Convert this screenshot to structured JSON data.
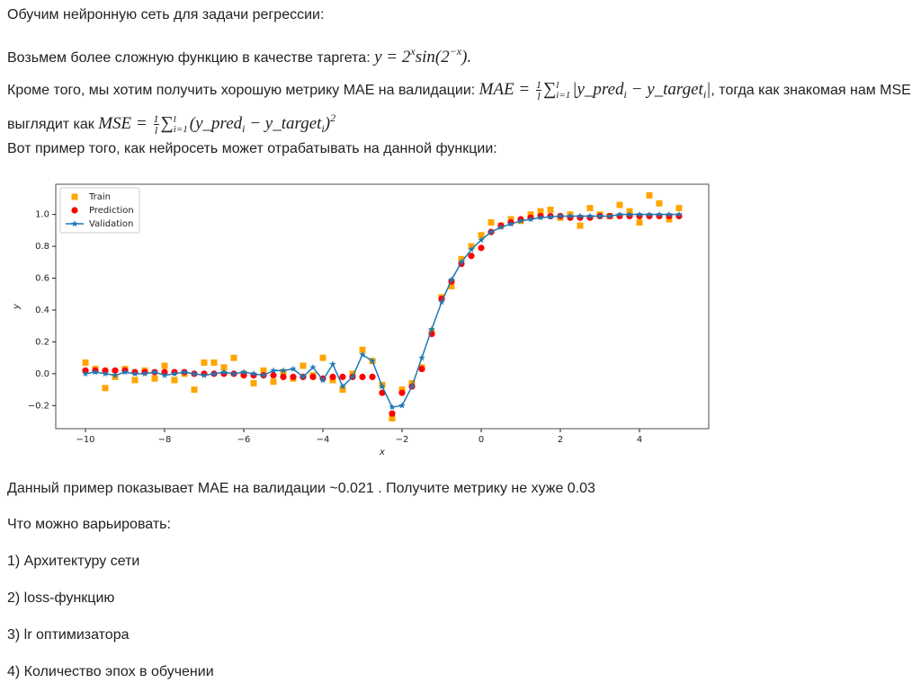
{
  "p0": "Обучим нейронную сеть для задачи регрессии:",
  "p1": {
    "text": "Возьмем более сложную функцию в качестве таргета: ",
    "formula": [
      "y = 2",
      "x",
      "sin(2",
      "−x",
      ")."
    ]
  },
  "p2": {
    "text1": "Кроме того, мы хотим получить хорошую метрику MAE на валидации: ",
    "mae": [
      "MAE = ",
      "1",
      "l",
      "∑",
      "l",
      "i=1",
      "|y_pred",
      "i",
      " − y_target",
      "i",
      "|"
    ],
    "text2": ", тогда как знакомая нам MSE выглядит как ",
    "mse": [
      "MSE = ",
      "1",
      "l",
      "∑",
      "l",
      "i=1",
      "(y_pred",
      "i",
      " − y_target",
      "i",
      ")",
      "2"
    ]
  },
  "p3": "Вот пример того, как нейросеть может отрабатывать на данной функции:",
  "chart_data": {
    "type": "scatter",
    "xlabel": "x",
    "ylabel": "y",
    "xlim": [
      -10.75,
      5.75
    ],
    "ylim": [
      -0.345,
      1.19
    ],
    "xticks": [
      {
        "value": -10,
        "label": "−10"
      },
      {
        "value": -8,
        "label": "−8"
      },
      {
        "value": -6,
        "label": "−6"
      },
      {
        "value": -4,
        "label": "−4"
      },
      {
        "value": -2,
        "label": "−2"
      },
      0,
      2,
      4
    ],
    "yticks": [
      {
        "value": -0.2,
        "label": "−0.2"
      },
      {
        "value": 0,
        "label": "0.0"
      },
      0.2,
      0.4,
      0.6,
      0.8,
      {
        "value": 1,
        "label": "1.0"
      }
    ],
    "legend": "upper-left",
    "x": [
      -10,
      -9.75,
      -9.5,
      -9.25,
      -9,
      -8.75,
      -8.5,
      -8.25,
      -8,
      -7.75,
      -7.5,
      -7.25,
      -7,
      -6.75,
      -6.5,
      -6.25,
      -6,
      -5.75,
      -5.5,
      -5.25,
      -5,
      -4.75,
      -4.5,
      -4.25,
      -4,
      -3.75,
      -3.5,
      -3.25,
      -3,
      -2.75,
      -2.5,
      -2.25,
      -2,
      -1.75,
      -1.5,
      -1.25,
      -1,
      -0.75,
      -0.5,
      -0.25,
      0,
      0.25,
      0.5,
      0.75,
      1,
      1.25,
      1.5,
      1.75,
      2,
      2.25,
      2.5,
      2.75,
      3,
      3.25,
      3.5,
      3.75,
      4,
      4.25,
      4.5,
      4.75,
      5
    ],
    "series": [
      {
        "name": "Train",
        "color": "#ffa500",
        "marker": "square",
        "values": [
          0.07,
          0.03,
          -0.09,
          -0.02,
          0.03,
          -0.04,
          0.02,
          -0.03,
          0.05,
          -0.04,
          0.0,
          -0.1,
          0.07,
          0.07,
          0.04,
          0.1,
          0.0,
          -0.06,
          0.02,
          -0.05,
          0.01,
          -0.03,
          0.05,
          -0.01,
          0.1,
          -0.04,
          -0.1,
          0.0,
          0.15,
          0.08,
          -0.07,
          -0.28,
          -0.1,
          -0.06,
          0.04,
          0.26,
          0.48,
          0.55,
          0.72,
          0.8,
          0.87,
          0.95,
          0.93,
          0.97,
          0.96,
          1.0,
          1.02,
          1.03,
          0.98,
          1.0,
          0.93,
          1.04,
          1.0,
          0.99,
          1.06,
          1.02,
          0.95,
          1.12,
          1.07,
          0.97,
          1.04
        ]
      },
      {
        "name": "Prediction",
        "color": "#ff0000",
        "marker": "circle",
        "values": [
          0.02,
          0.02,
          0.02,
          0.02,
          0.02,
          0.01,
          0.01,
          0.01,
          0.01,
          0.01,
          0.01,
          0.0,
          0.0,
          0.0,
          0.0,
          0.0,
          -0.01,
          -0.01,
          -0.01,
          -0.01,
          -0.02,
          -0.02,
          -0.02,
          -0.02,
          -0.03,
          -0.02,
          -0.02,
          -0.02,
          -0.02,
          -0.02,
          -0.12,
          -0.25,
          -0.12,
          -0.08,
          0.03,
          0.25,
          0.47,
          0.58,
          0.69,
          0.74,
          0.79,
          0.89,
          0.93,
          0.95,
          0.97,
          0.98,
          0.99,
          0.99,
          0.99,
          0.98,
          0.98,
          0.98,
          0.99,
          0.99,
          0.99,
          0.99,
          0.99,
          0.99,
          0.99,
          0.99,
          0.99
        ]
      },
      {
        "name": "Validation",
        "color": "#1f77b4",
        "marker": "star-line",
        "values": [
          0.0,
          0.01,
          0.0,
          -0.01,
          0.01,
          0.0,
          0.0,
          0.01,
          -0.01,
          0.0,
          0.01,
          0.0,
          -0.01,
          0.0,
          0.01,
          0.0,
          0.01,
          0.0,
          -0.01,
          0.02,
          0.02,
          0.03,
          -0.02,
          0.04,
          -0.04,
          0.06,
          -0.08,
          -0.02,
          0.12,
          0.08,
          -0.08,
          -0.21,
          -0.2,
          -0.08,
          0.1,
          0.28,
          0.45,
          0.59,
          0.7,
          0.78,
          0.84,
          0.89,
          0.92,
          0.94,
          0.96,
          0.97,
          0.98,
          0.985,
          0.99,
          0.99,
          0.99,
          0.99,
          0.99,
          0.99,
          1.0,
          1.0,
          1.0,
          1.0,
          1.0,
          1.0,
          1.0
        ]
      }
    ]
  },
  "p4": "Данный пример показывает MAE на валидации ~0.021 . Получите метрику не хуже 0.03",
  "p5": "Что можно варьировать:",
  "list": [
    "1) Архитектуру сети",
    "2) loss-функцию",
    "3) lr оптимизатора",
    "4) Количество эпох в обучении"
  ]
}
